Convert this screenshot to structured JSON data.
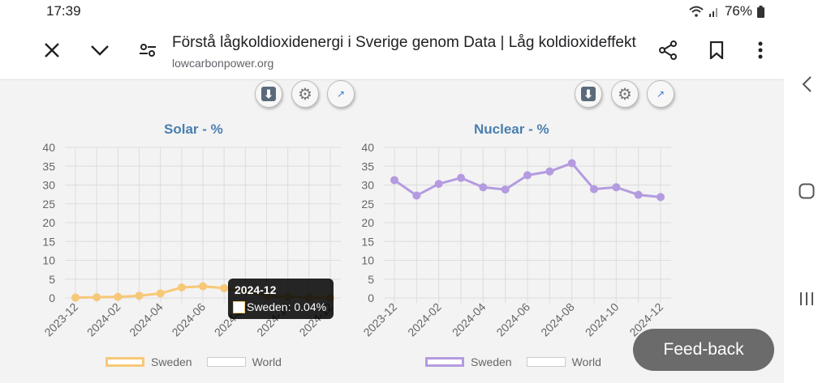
{
  "status": {
    "time": "17:39",
    "battery": "76%"
  },
  "browser": {
    "title": "Förstå lågkoldioxidenergi i Sverige genom Data | Låg koldioxideffekt",
    "url": "lowcarbonpower.org"
  },
  "colors": {
    "solar": "#f7c877",
    "nuclear": "#b49be0",
    "title": "#4a7fb0"
  },
  "charts": {
    "solar": {
      "title": "Solar - %",
      "legend": [
        "Sweden",
        "World"
      ]
    },
    "nuclear": {
      "title": "Nuclear - %",
      "legend": [
        "Sweden",
        "World"
      ]
    }
  },
  "tooltip": {
    "title": "2024-12",
    "text": "Sweden: 0.04%"
  },
  "feedback": "Feed-back",
  "chart_data": [
    {
      "type": "line",
      "title": "Solar - %",
      "x": [
        "2023-12",
        "2024-01",
        "2024-02",
        "2024-03",
        "2024-04",
        "2024-05",
        "2024-06",
        "2024-07",
        "2024-08",
        "2024-09",
        "2024-10",
        "2024-11",
        "2024-12"
      ],
      "xticks": [
        "2023-12",
        "2024-02",
        "2024-04",
        "2024-06",
        "2024-08",
        "2024-10",
        "2024-12"
      ],
      "yticks": [
        0,
        5,
        10,
        15,
        20,
        25,
        30,
        35,
        40
      ],
      "ylim": [
        0,
        40
      ],
      "series": [
        {
          "name": "Sweden",
          "values": [
            0.1,
            0.2,
            0.3,
            0.6,
            1.2,
            2.8,
            3.1,
            2.6,
            1.8,
            0.6,
            0.3,
            0.1,
            0.04
          ]
        }
      ],
      "legend": [
        "Sweden",
        "World"
      ],
      "grid": true
    },
    {
      "type": "line",
      "title": "Nuclear - %",
      "x": [
        "2023-12",
        "2024-01",
        "2024-02",
        "2024-03",
        "2024-04",
        "2024-05",
        "2024-06",
        "2024-07",
        "2024-08",
        "2024-09",
        "2024-10",
        "2024-11",
        "2024-12"
      ],
      "xticks": [
        "2023-12",
        "2024-02",
        "2024-04",
        "2024-06",
        "2024-08",
        "2024-10",
        "2024-12"
      ],
      "yticks": [
        0,
        5,
        10,
        15,
        20,
        25,
        30,
        35,
        40
      ],
      "ylim": [
        0,
        40
      ],
      "series": [
        {
          "name": "Sweden",
          "values": [
            31.3,
            27.2,
            30.3,
            31.9,
            29.4,
            28.8,
            32.6,
            33.6,
            35.8,
            28.9,
            29.4,
            27.4,
            26.8
          ]
        }
      ],
      "legend": [
        "Sweden",
        "World"
      ],
      "grid": true
    }
  ]
}
